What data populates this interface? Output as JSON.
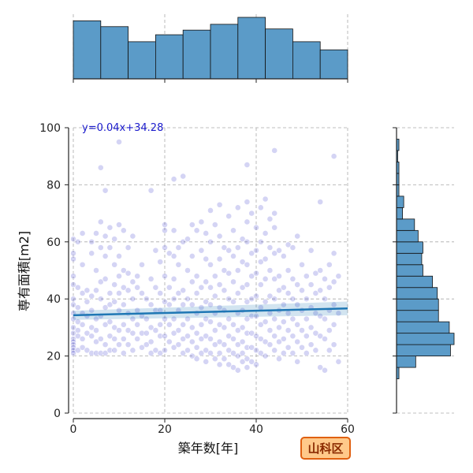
{
  "chart_data": {
    "type": "scatter",
    "xlabel": "築年数[年]",
    "ylabel": "専有面積[m2]",
    "xlim": [
      0,
      60
    ],
    "ylim": [
      0,
      100
    ],
    "x_ticks": [
      "0",
      "20",
      "40",
      "60"
    ],
    "y_ticks": [
      "0",
      "20",
      "40",
      "60",
      "80",
      "100"
    ],
    "grid": true,
    "regression": {
      "label": "y=0.04x+34.28",
      "slope": 0.04,
      "intercept": 34.28,
      "color": "#1f77b4"
    },
    "badge": "山科区",
    "point_color": "#3a3acc",
    "hist_color": "#5b9bc8",
    "points": [
      [
        0,
        61
      ],
      [
        0,
        48
      ],
      [
        0,
        45
      ],
      [
        0,
        40
      ],
      [
        0,
        38
      ],
      [
        0,
        35
      ],
      [
        0,
        33
      ],
      [
        0,
        30
      ],
      [
        0,
        28
      ],
      [
        0,
        26
      ],
      [
        0,
        25
      ],
      [
        0,
        24
      ],
      [
        0,
        23
      ],
      [
        0,
        22
      ],
      [
        0,
        21
      ],
      [
        0,
        56
      ],
      [
        0,
        54
      ],
      [
        1,
        60
      ],
      [
        1,
        44
      ],
      [
        1,
        37
      ],
      [
        1,
        32
      ],
      [
        1,
        29
      ],
      [
        1,
        27
      ],
      [
        1,
        22
      ],
      [
        2,
        63
      ],
      [
        2,
        52
      ],
      [
        2,
        42
      ],
      [
        2,
        35
      ],
      [
        2,
        31
      ],
      [
        2,
        26
      ],
      [
        2,
        23
      ],
      [
        3,
        43
      ],
      [
        3,
        39
      ],
      [
        3,
        34
      ],
      [
        3,
        28
      ],
      [
        3,
        22
      ],
      [
        4,
        60
      ],
      [
        4,
        56
      ],
      [
        4,
        41
      ],
      [
        4,
        36
      ],
      [
        4,
        30
      ],
      [
        4,
        27
      ],
      [
        4,
        21
      ],
      [
        5,
        63
      ],
      [
        5,
        50
      ],
      [
        5,
        43
      ],
      [
        5,
        33
      ],
      [
        5,
        29
      ],
      [
        5,
        25
      ],
      [
        5,
        21
      ],
      [
        6,
        86
      ],
      [
        6,
        67
      ],
      [
        6,
        58
      ],
      [
        6,
        46
      ],
      [
        6,
        40
      ],
      [
        6,
        34
      ],
      [
        6,
        26
      ],
      [
        6,
        21
      ],
      [
        7,
        78
      ],
      [
        7,
        62
      ],
      [
        7,
        55
      ],
      [
        7,
        47
      ],
      [
        7,
        37
      ],
      [
        7,
        31
      ],
      [
        7,
        24
      ],
      [
        7,
        21
      ],
      [
        8,
        65
      ],
      [
        8,
        58
      ],
      [
        8,
        42
      ],
      [
        8,
        38
      ],
      [
        8,
        32
      ],
      [
        8,
        27
      ],
      [
        8,
        22
      ],
      [
        9,
        61
      ],
      [
        9,
        52
      ],
      [
        9,
        45
      ],
      [
        9,
        39
      ],
      [
        9,
        30
      ],
      [
        9,
        26
      ],
      [
        9,
        22
      ],
      [
        10,
        95
      ],
      [
        10,
        66
      ],
      [
        10,
        55
      ],
      [
        10,
        48
      ],
      [
        10,
        42
      ],
      [
        10,
        36
      ],
      [
        10,
        29
      ],
      [
        10,
        24
      ],
      [
        11,
        64
      ],
      [
        11,
        50
      ],
      [
        11,
        44
      ],
      [
        11,
        38
      ],
      [
        11,
        31
      ],
      [
        11,
        26
      ],
      [
        11,
        21
      ],
      [
        12,
        58
      ],
      [
        12,
        49
      ],
      [
        12,
        43
      ],
      [
        12,
        35
      ],
      [
        12,
        29
      ],
      [
        12,
        24
      ],
      [
        13,
        62
      ],
      [
        13,
        46
      ],
      [
        13,
        40
      ],
      [
        13,
        33
      ],
      [
        13,
        28
      ],
      [
        13,
        22
      ],
      [
        14,
        48
      ],
      [
        14,
        44
      ],
      [
        14,
        36
      ],
      [
        14,
        31
      ],
      [
        14,
        26
      ],
      [
        15,
        52
      ],
      [
        15,
        42
      ],
      [
        15,
        34
      ],
      [
        15,
        28
      ],
      [
        15,
        23
      ],
      [
        16,
        40
      ],
      [
        16,
        33
      ],
      [
        16,
        28
      ],
      [
        16,
        24
      ],
      [
        17,
        78
      ],
      [
        17,
        47
      ],
      [
        17,
        38
      ],
      [
        17,
        30
      ],
      [
        17,
        25
      ],
      [
        17,
        21
      ],
      [
        18,
        57
      ],
      [
        18,
        44
      ],
      [
        18,
        36
      ],
      [
        18,
        29
      ],
      [
        18,
        22
      ],
      [
        19,
        53
      ],
      [
        19,
        42
      ],
      [
        19,
        36
      ],
      [
        19,
        31
      ],
      [
        19,
        27
      ],
      [
        19,
        21
      ],
      [
        20,
        66
      ],
      [
        20,
        64
      ],
      [
        20,
        58
      ],
      [
        20,
        48
      ],
      [
        20,
        39
      ],
      [
        20,
        33
      ],
      [
        20,
        27
      ],
      [
        20,
        22
      ],
      [
        21,
        56
      ],
      [
        21,
        44
      ],
      [
        21,
        38
      ],
      [
        21,
        31
      ],
      [
        21,
        25
      ],
      [
        22,
        82
      ],
      [
        22,
        64
      ],
      [
        22,
        55
      ],
      [
        22,
        47
      ],
      [
        22,
        40
      ],
      [
        22,
        33
      ],
      [
        22,
        28
      ],
      [
        22,
        23
      ],
      [
        23,
        58
      ],
      [
        23,
        52
      ],
      [
        23,
        42
      ],
      [
        23,
        36
      ],
      [
        23,
        29
      ],
      [
        23,
        24
      ],
      [
        24,
        83
      ],
      [
        24,
        60
      ],
      [
        24,
        43
      ],
      [
        24,
        38
      ],
      [
        24,
        31
      ],
      [
        24,
        26
      ],
      [
        24,
        21
      ],
      [
        25,
        61
      ],
      [
        25,
        50
      ],
      [
        25,
        40
      ],
      [
        25,
        33
      ],
      [
        25,
        27
      ],
      [
        25,
        22
      ],
      [
        26,
        66
      ],
      [
        26,
        55
      ],
      [
        26,
        46
      ],
      [
        26,
        38
      ],
      [
        26,
        30
      ],
      [
        26,
        25
      ],
      [
        26,
        20
      ],
      [
        27,
        64
      ],
      [
        27,
        48
      ],
      [
        27,
        42
      ],
      [
        27,
        35
      ],
      [
        27,
        28
      ],
      [
        27,
        23
      ],
      [
        27,
        19
      ],
      [
        28,
        67
      ],
      [
        28,
        57
      ],
      [
        28,
        44
      ],
      [
        28,
        37
      ],
      [
        28,
        31
      ],
      [
        28,
        26
      ],
      [
        28,
        21
      ],
      [
        29,
        63
      ],
      [
        29,
        54
      ],
      [
        29,
        46
      ],
      [
        29,
        39
      ],
      [
        29,
        33
      ],
      [
        29,
        27
      ],
      [
        29,
        22
      ],
      [
        29,
        18
      ],
      [
        30,
        71
      ],
      [
        30,
        60
      ],
      [
        30,
        52
      ],
      [
        30,
        44
      ],
      [
        30,
        38
      ],
      [
        30,
        32
      ],
      [
        30,
        26
      ],
      [
        30,
        21
      ],
      [
        31,
        66
      ],
      [
        31,
        48
      ],
      [
        31,
        41
      ],
      [
        31,
        35
      ],
      [
        31,
        29
      ],
      [
        31,
        24
      ],
      [
        31,
        19
      ],
      [
        32,
        73
      ],
      [
        32,
        62
      ],
      [
        32,
        54
      ],
      [
        32,
        45
      ],
      [
        32,
        37
      ],
      [
        32,
        31
      ],
      [
        32,
        25
      ],
      [
        32,
        21
      ],
      [
        32,
        17
      ],
      [
        33,
        58
      ],
      [
        33,
        50
      ],
      [
        33,
        43
      ],
      [
        33,
        36
      ],
      [
        33,
        30
      ],
      [
        33,
        24
      ],
      [
        33,
        19
      ],
      [
        34,
        69
      ],
      [
        34,
        57
      ],
      [
        34,
        49
      ],
      [
        34,
        40
      ],
      [
        34,
        33
      ],
      [
        34,
        27
      ],
      [
        34,
        22
      ],
      [
        34,
        17
      ],
      [
        35,
        64
      ],
      [
        35,
        55
      ],
      [
        35,
        46
      ],
      [
        35,
        39
      ],
      [
        35,
        31
      ],
      [
        35,
        26
      ],
      [
        35,
        21
      ],
      [
        35,
        16
      ],
      [
        36,
        72
      ],
      [
        36,
        58
      ],
      [
        36,
        50
      ],
      [
        36,
        42
      ],
      [
        36,
        35
      ],
      [
        36,
        29
      ],
      [
        36,
        24
      ],
      [
        36,
        20
      ],
      [
        36,
        15
      ],
      [
        37,
        61
      ],
      [
        37,
        53
      ],
      [
        37,
        44
      ],
      [
        37,
        36
      ],
      [
        37,
        30
      ],
      [
        37,
        25
      ],
      [
        37,
        21
      ],
      [
        37,
        18
      ],
      [
        38,
        87
      ],
      [
        38,
        74
      ],
      [
        38,
        67
      ],
      [
        38,
        60
      ],
      [
        38,
        52
      ],
      [
        38,
        45
      ],
      [
        38,
        39
      ],
      [
        38,
        33
      ],
      [
        38,
        28
      ],
      [
        38,
        23
      ],
      [
        38,
        19
      ],
      [
        38,
        16
      ],
      [
        39,
        70
      ],
      [
        39,
        56
      ],
      [
        39,
        48
      ],
      [
        39,
        40
      ],
      [
        39,
        34
      ],
      [
        39,
        28
      ],
      [
        39,
        23
      ],
      [
        39,
        18
      ],
      [
        40,
        65
      ],
      [
        40,
        57
      ],
      [
        40,
        49
      ],
      [
        40,
        41
      ],
      [
        40,
        34
      ],
      [
        40,
        27
      ],
      [
        40,
        22
      ],
      [
        40,
        17
      ],
      [
        41,
        72
      ],
      [
        41,
        60
      ],
      [
        41,
        53
      ],
      [
        41,
        45
      ],
      [
        41,
        37
      ],
      [
        41,
        31
      ],
      [
        41,
        26
      ],
      [
        41,
        21
      ],
      [
        42,
        75
      ],
      [
        42,
        63
      ],
      [
        42,
        54
      ],
      [
        42,
        47
      ],
      [
        42,
        39
      ],
      [
        42,
        32
      ],
      [
        42,
        25
      ],
      [
        42,
        20
      ],
      [
        43,
        68
      ],
      [
        43,
        58
      ],
      [
        43,
        50
      ],
      [
        43,
        41
      ],
      [
        43,
        35
      ],
      [
        43,
        29
      ],
      [
        43,
        24
      ],
      [
        44,
        92
      ],
      [
        44,
        70
      ],
      [
        44,
        65
      ],
      [
        44,
        56
      ],
      [
        44,
        47
      ],
      [
        44,
        40
      ],
      [
        44,
        33
      ],
      [
        44,
        27
      ],
      [
        44,
        22
      ],
      [
        45,
        57
      ],
      [
        45,
        48
      ],
      [
        45,
        43
      ],
      [
        45,
        36
      ],
      [
        45,
        30
      ],
      [
        45,
        25
      ],
      [
        45,
        19
      ],
      [
        46,
        55
      ],
      [
        46,
        44
      ],
      [
        46,
        38
      ],
      [
        46,
        32
      ],
      [
        46,
        26
      ],
      [
        46,
        21
      ],
      [
        47,
        59
      ],
      [
        47,
        50
      ],
      [
        47,
        42
      ],
      [
        47,
        35
      ],
      [
        47,
        29
      ],
      [
        47,
        23
      ],
      [
        48,
        58
      ],
      [
        48,
        47
      ],
      [
        48,
        40
      ],
      [
        48,
        33
      ],
      [
        48,
        27
      ],
      [
        48,
        21
      ],
      [
        49,
        62
      ],
      [
        49,
        45
      ],
      [
        49,
        38
      ],
      [
        49,
        31
      ],
      [
        49,
        25
      ],
      [
        49,
        18
      ],
      [
        50,
        52
      ],
      [
        50,
        43
      ],
      [
        50,
        36
      ],
      [
        50,
        29
      ],
      [
        50,
        23
      ],
      [
        51,
        48
      ],
      [
        51,
        40
      ],
      [
        51,
        33
      ],
      [
        51,
        27
      ],
      [
        51,
        21
      ],
      [
        52,
        57
      ],
      [
        52,
        45
      ],
      [
        52,
        37
      ],
      [
        52,
        30
      ],
      [
        52,
        24
      ],
      [
        53,
        49
      ],
      [
        53,
        42
      ],
      [
        53,
        35
      ],
      [
        53,
        28
      ],
      [
        53,
        22
      ],
      [
        54,
        74
      ],
      [
        54,
        50
      ],
      [
        54,
        43
      ],
      [
        54,
        34
      ],
      [
        54,
        27
      ],
      [
        54,
        16
      ],
      [
        55,
        47
      ],
      [
        55,
        40
      ],
      [
        55,
        33
      ],
      [
        55,
        26
      ],
      [
        55,
        15
      ],
      [
        56,
        52
      ],
      [
        56,
        44
      ],
      [
        56,
        36
      ],
      [
        56,
        29
      ],
      [
        56,
        22
      ],
      [
        57,
        90
      ],
      [
        57,
        56
      ],
      [
        57,
        46
      ],
      [
        57,
        38
      ],
      [
        57,
        31
      ],
      [
        57,
        24
      ],
      [
        58,
        48
      ],
      [
        58,
        35
      ],
      [
        58,
        18
      ]
    ]
  }
}
